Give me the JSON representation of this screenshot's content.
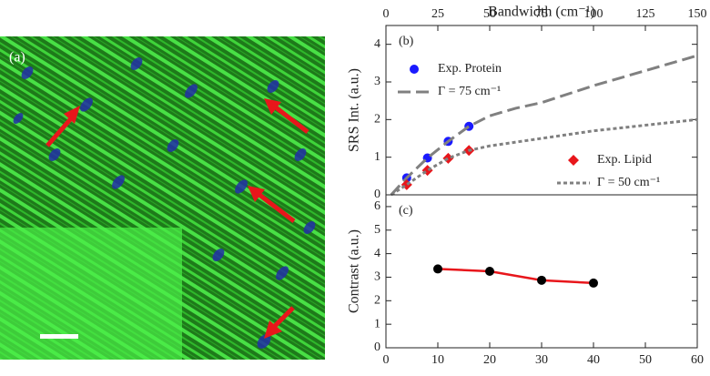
{
  "image": {
    "label": "(a)"
  },
  "chart_data": [
    {
      "type": "line",
      "label": "(b)",
      "ylabel": "SRS Int. (a.u.)",
      "x2label": "Bandwidth (cm⁻¹)",
      "xlim": [
        0,
        60
      ],
      "ylim": [
        0,
        4.5
      ],
      "yticks": [
        0,
        1,
        2,
        3,
        4
      ],
      "x2lim": [
        0,
        150
      ],
      "x2ticks": [
        0,
        25,
        50,
        75,
        100,
        125,
        150
      ],
      "series": [
        {
          "name": "Exp. Protein",
          "color": "#1a1aff",
          "style": "markers",
          "marker": "circle",
          "x": [
            4,
            8,
            12,
            16
          ],
          "values": [
            0.45,
            0.98,
            1.42,
            1.82
          ]
        },
        {
          "name": "Γ = 75 cm⁻¹",
          "color": "#808080",
          "style": "dashed",
          "x": [
            1,
            4,
            8,
            12,
            16,
            20,
            25,
            30,
            40,
            50,
            60
          ],
          "values": [
            0,
            0.45,
            0.98,
            1.42,
            1.82,
            2.1,
            2.3,
            2.45,
            2.9,
            3.3,
            3.7
          ]
        },
        {
          "name": "Exp. Lipid",
          "color": "#e8161b",
          "style": "markers",
          "marker": "diamond",
          "x": [
            4,
            8,
            12,
            16
          ],
          "values": [
            0.27,
            0.65,
            0.97,
            1.18
          ]
        },
        {
          "name": "Γ = 50 cm⁻¹",
          "color": "#808080",
          "style": "dotted",
          "x": [
            1,
            4,
            8,
            12,
            16,
            20,
            25,
            30,
            40,
            50,
            60
          ],
          "values": [
            0,
            0.27,
            0.65,
            0.97,
            1.18,
            1.3,
            1.4,
            1.5,
            1.7,
            1.85,
            2.0
          ]
        }
      ]
    },
    {
      "type": "line",
      "label": "(c)",
      "ylabel": "Contrast (a.u.)",
      "xlim": [
        0,
        60
      ],
      "xticks": [
        0,
        10,
        20,
        30,
        40,
        50,
        60
      ],
      "ylim": [
        0,
        6.5
      ],
      "yticks": [
        0,
        1,
        2,
        3,
        4,
        5,
        6
      ],
      "series": [
        {
          "color": "#e8161b",
          "style": "line+markers",
          "marker": "circle",
          "marker_color": "#000000",
          "x": [
            10,
            20,
            30,
            40
          ],
          "values": [
            3.35,
            3.25,
            2.87,
            2.75
          ]
        }
      ]
    }
  ]
}
